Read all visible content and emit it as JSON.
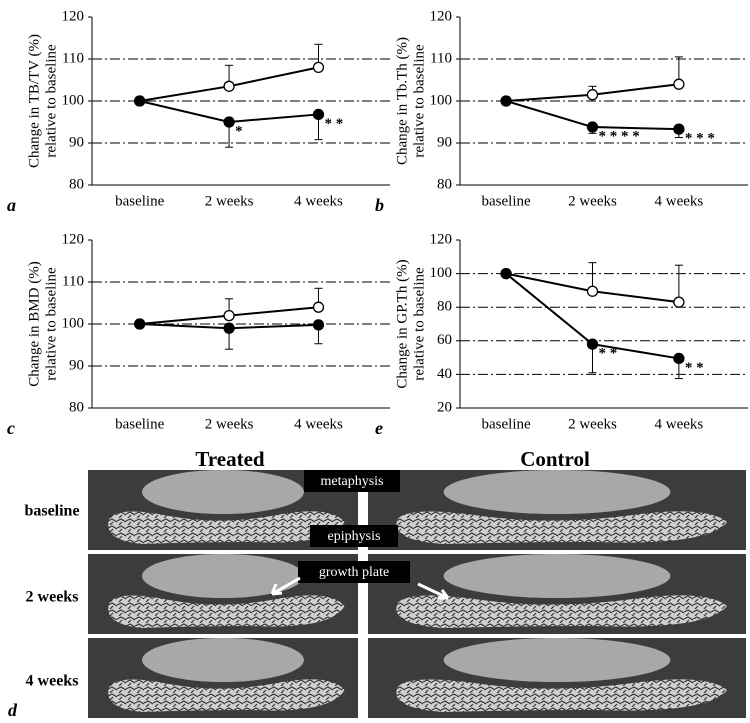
{
  "chart_data": [
    {
      "type": "line",
      "panel": "a",
      "ylabel": [
        "Change in TB/TV (%)",
        "relative to baseline"
      ],
      "categories": [
        "baseline",
        "2 weeks",
        "4 weeks"
      ],
      "series": [
        {
          "marker": "open",
          "values": [
            100,
            103.5,
            108
          ],
          "errors": [
            0,
            5,
            5.5
          ],
          "error_direction": "up"
        },
        {
          "marker": "filled",
          "values": [
            100,
            95,
            96.8
          ],
          "errors": [
            0,
            6,
            6
          ],
          "error_direction": "down",
          "annotations": [
            null,
            "*",
            "* *"
          ]
        }
      ],
      "ylim": [
        80,
        120
      ],
      "yticks": [
        80,
        90,
        100,
        110,
        120
      ],
      "grid": "interior"
    },
    {
      "type": "line",
      "panel": "b",
      "ylabel": [
        "Change in Tb.Th (%)",
        "relative to baseline"
      ],
      "categories": [
        "baseline",
        "2 weeks",
        "4 weeks"
      ],
      "series": [
        {
          "marker": "open",
          "values": [
            100,
            101.5,
            104
          ],
          "errors": [
            0,
            2,
            6.5
          ],
          "error_direction": "up"
        },
        {
          "marker": "filled",
          "values": [
            100,
            93.8,
            93.3
          ],
          "errors": [
            0,
            1.5,
            2
          ],
          "error_direction": "down",
          "annotations": [
            null,
            "* * * *",
            "* * *"
          ]
        }
      ],
      "ylim": [
        80,
        120
      ],
      "yticks": [
        80,
        90,
        100,
        110,
        120
      ],
      "grid": "interior"
    },
    {
      "type": "line",
      "panel": "c",
      "ylabel": [
        "Change in BMD (%)",
        "relative to baseline"
      ],
      "categories": [
        "baseline",
        "2 weeks",
        "4 weeks"
      ],
      "series": [
        {
          "marker": "open",
          "values": [
            100,
            102,
            104
          ],
          "errors": [
            0,
            4,
            4.5
          ],
          "error_direction": "up"
        },
        {
          "marker": "filled",
          "values": [
            100,
            99,
            99.8
          ],
          "errors": [
            0,
            5,
            4.5
          ],
          "error_direction": "down"
        }
      ],
      "ylim": [
        80,
        120
      ],
      "yticks": [
        80,
        90,
        100,
        110,
        120
      ],
      "grid": "interior"
    },
    {
      "type": "line",
      "panel": "e",
      "ylabel": [
        "Change in GP.Th (%)",
        "relative to baseline"
      ],
      "categories": [
        "baseline",
        "2 weeks",
        "4 weeks"
      ],
      "series": [
        {
          "marker": "open",
          "values": [
            100,
            89.5,
            83
          ],
          "errors": [
            0,
            17,
            22
          ],
          "error_direction": "up"
        },
        {
          "marker": "filled",
          "values": [
            100,
            58,
            49.5
          ],
          "errors": [
            0,
            17,
            12
          ],
          "error_direction": "down",
          "annotations": [
            null,
            "* *",
            "* *"
          ]
        }
      ],
      "ylim": [
        20,
        120
      ],
      "yticks": [
        20,
        40,
        60,
        80,
        100,
        120
      ],
      "grid": "interior"
    }
  ],
  "image_panel": {
    "panel": "d",
    "columns": [
      "Treated",
      "Control"
    ],
    "rows": [
      "baseline",
      "2 weeks",
      "4 weeks"
    ],
    "labels": [
      "metaphysis",
      "epiphysis",
      "growth plate"
    ]
  }
}
